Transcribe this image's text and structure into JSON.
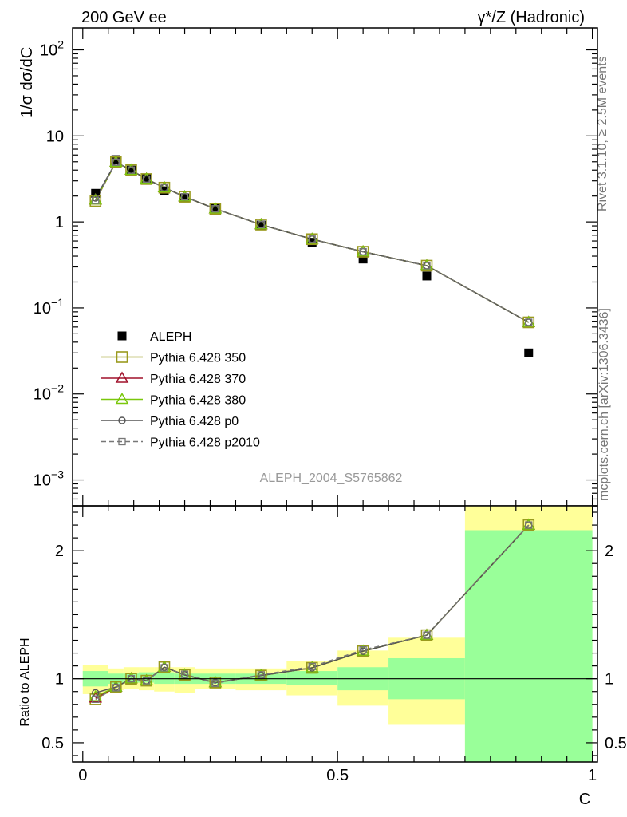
{
  "header": {
    "left_title": "200 GeV ee",
    "right_title": "γ*/Z (Hadronic)"
  },
  "side": {
    "rivet": "Rivet 3.1.10, ≥ 2.5M events",
    "mcplots": "mcplots.cern.ch [arXiv:1306.3436]"
  },
  "analysis_id": "ALEPH_2004_S5765862",
  "chart_data": [
    {
      "type": "scatter",
      "panel": "main",
      "ylabel": "1/σ dσ/dC",
      "yscale": "log",
      "ylim": [
        0.0005,
        180
      ],
      "xlim": [
        -0.02,
        1.01
      ],
      "y_ticks": [
        {
          "value": 100,
          "base": "10",
          "exp": "2"
        },
        {
          "value": 10,
          "base": "10",
          "exp": ""
        },
        {
          "value": 1,
          "base": "1",
          "exp": ""
        },
        {
          "value": 0.1,
          "base": "10",
          "exp": "−1"
        },
        {
          "value": 0.01,
          "base": "10",
          "exp": "−2"
        },
        {
          "value": 0.001,
          "base": "10",
          "exp": "−3"
        }
      ],
      "x": [
        0.025,
        0.065,
        0.095,
        0.125,
        0.16,
        0.2,
        0.26,
        0.35,
        0.45,
        0.55,
        0.675,
        0.875
      ],
      "data": {
        "name": "ALEPH",
        "values": [
          2.15,
          5.3,
          4.0,
          3.2,
          2.3,
          1.9,
          1.45,
          0.92,
          0.58,
          0.37,
          0.235,
          0.03
        ]
      },
      "series": [
        {
          "name": "Pythia 6.428 350",
          "color": "#9a9a1e",
          "marker": "open-square",
          "dash": "",
          "values": [
            1.75,
            4.95,
            4.0,
            3.15,
            2.5,
            1.96,
            1.42,
            0.93,
            0.63,
            0.45,
            0.31,
            0.068
          ]
        },
        {
          "name": "Pythia 6.428 370",
          "color": "#a0102a",
          "marker": "open-triangle",
          "dash": "",
          "values": [
            1.8,
            4.95,
            4.0,
            3.15,
            2.5,
            1.96,
            1.42,
            0.93,
            0.63,
            0.45,
            0.31,
            0.068
          ]
        },
        {
          "name": "Pythia 6.428 380",
          "color": "#7ac70c",
          "marker": "open-triangle",
          "dash": "",
          "values": [
            1.8,
            4.95,
            4.0,
            3.15,
            2.5,
            1.96,
            1.42,
            0.93,
            0.63,
            0.45,
            0.31,
            0.068
          ]
        },
        {
          "name": "Pythia 6.428 p0",
          "color": "#555555",
          "marker": "open-circle",
          "dash": "",
          "values": [
            1.9,
            4.95,
            4.0,
            3.15,
            2.5,
            1.96,
            1.42,
            0.93,
            0.63,
            0.45,
            0.31,
            0.068
          ]
        },
        {
          "name": "Pythia 6.428 p2010",
          "color": "#777777",
          "marker": "open-square-small",
          "dash": "6,4",
          "values": [
            1.78,
            4.95,
            4.0,
            3.15,
            2.5,
            1.96,
            1.42,
            0.93,
            0.63,
            0.45,
            0.31,
            0.068
          ]
        }
      ]
    },
    {
      "type": "line",
      "panel": "ratio",
      "ylabel": "Ratio to ALEPH",
      "xlabel": "C",
      "ylim": [
        0.35,
        2.35
      ],
      "xlim": [
        -0.02,
        1.01
      ],
      "y_ticks": [
        {
          "value": 0.5,
          "label": "0.5"
        },
        {
          "value": 1,
          "label": "1"
        },
        {
          "value": 2,
          "label": "2"
        }
      ],
      "x_ticks": [
        {
          "value": 0,
          "label": "0"
        },
        {
          "value": 0.5,
          "label": "0.5"
        },
        {
          "value": 1,
          "label": "1"
        }
      ],
      "x": [
        0.025,
        0.065,
        0.095,
        0.125,
        0.16,
        0.2,
        0.26,
        0.35,
        0.45,
        0.55,
        0.675,
        0.875
      ],
      "bands": [
        {
          "x0": 0.0,
          "x1": 0.05,
          "stat": [
            0.94,
            1.06
          ],
          "total": [
            0.88,
            1.11
          ]
        },
        {
          "x0": 0.05,
          "x1": 0.08,
          "stat": [
            0.96,
            1.04
          ],
          "total": [
            0.91,
            1.08
          ]
        },
        {
          "x0": 0.08,
          "x1": 0.11,
          "stat": [
            0.97,
            1.04
          ],
          "total": [
            0.92,
            1.09
          ]
        },
        {
          "x0": 0.11,
          "x1": 0.14,
          "stat": [
            0.97,
            1.05
          ],
          "total": [
            0.91,
            1.09
          ]
        },
        {
          "x0": 0.14,
          "x1": 0.18,
          "stat": [
            0.96,
            1.05
          ],
          "total": [
            0.9,
            1.09
          ]
        },
        {
          "x0": 0.18,
          "x1": 0.22,
          "stat": [
            0.96,
            1.04
          ],
          "total": [
            0.89,
            1.09
          ]
        },
        {
          "x0": 0.22,
          "x1": 0.3,
          "stat": [
            0.96,
            1.04
          ],
          "total": [
            0.92,
            1.08
          ]
        },
        {
          "x0": 0.3,
          "x1": 0.4,
          "stat": [
            0.96,
            1.04
          ],
          "total": [
            0.91,
            1.08
          ]
        },
        {
          "x0": 0.4,
          "x1": 0.5,
          "stat": [
            0.95,
            1.06
          ],
          "total": [
            0.87,
            1.14
          ]
        },
        {
          "x0": 0.5,
          "x1": 0.6,
          "stat": [
            0.91,
            1.09
          ],
          "total": [
            0.79,
            1.22
          ]
        },
        {
          "x0": 0.6,
          "x1": 0.75,
          "stat": [
            0.84,
            1.16
          ],
          "total": [
            0.64,
            1.32
          ]
        },
        {
          "x0": 0.75,
          "x1": 1.0,
          "stat": [
            0.35,
            2.16
          ],
          "total": [
            0.35,
            2.35
          ]
        }
      ],
      "series": [
        {
          "name": "Pythia 6.428 350",
          "values": [
            0.84,
            0.935,
            1.0,
            0.985,
            1.09,
            1.03,
            0.97,
            1.025,
            1.085,
            1.215,
            1.34,
            2.2
          ]
        },
        {
          "name": "Pythia 6.428 370",
          "values": [
            0.85,
            0.935,
            1.0,
            0.985,
            1.09,
            1.03,
            0.97,
            1.025,
            1.085,
            1.215,
            1.34,
            2.2
          ]
        },
        {
          "name": "Pythia 6.428 380",
          "values": [
            0.86,
            0.935,
            1.0,
            0.985,
            1.09,
            1.03,
            0.97,
            1.025,
            1.085,
            1.215,
            1.34,
            2.2
          ]
        },
        {
          "name": "Pythia 6.428 p0",
          "values": [
            0.89,
            0.935,
            1.0,
            0.985,
            1.09,
            1.03,
            0.97,
            1.025,
            1.085,
            1.215,
            1.34,
            2.2
          ]
        },
        {
          "name": "Pythia 6.428 p2010",
          "values": [
            0.84,
            0.93,
            1.0,
            0.985,
            1.085,
            1.035,
            0.965,
            1.03,
            1.095,
            1.225,
            1.34,
            2.2
          ]
        }
      ]
    }
  ]
}
